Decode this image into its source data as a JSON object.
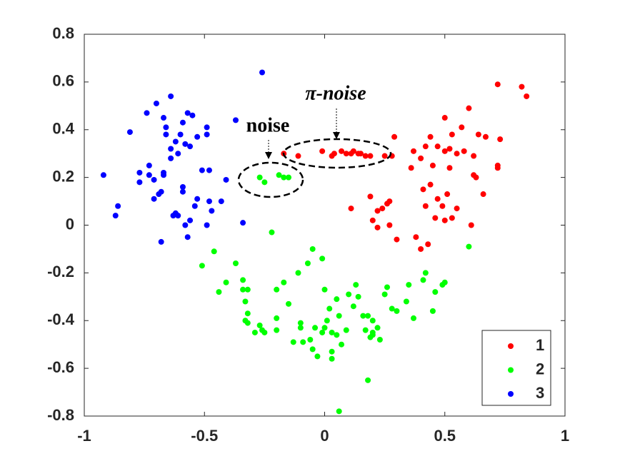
{
  "chart_data": {
    "type": "scatter",
    "xlim": [
      -1,
      1
    ],
    "ylim": [
      -0.8,
      0.8
    ],
    "xticks": [
      -1,
      -0.5,
      0,
      0.5,
      1
    ],
    "yticks": [
      -0.8,
      -0.6,
      -0.4,
      -0.2,
      0,
      0.2,
      0.4,
      0.6,
      0.8
    ],
    "legend": "lower right",
    "annotations": [
      "noise",
      "π-noise"
    ],
    "series": [
      {
        "name": "1",
        "color": "#ff0000",
        "x": [
          0.72,
          0.82,
          0.84,
          0.6,
          0.5,
          0.53,
          0.64,
          0.67,
          0.73,
          0.44,
          0.29,
          0.28,
          0.57,
          0.47,
          0.42,
          0.37,
          0.36,
          0.4,
          0.45,
          0.5,
          0.52,
          0.55,
          0.58,
          0.62,
          0.72,
          0.72,
          0.63,
          0.62,
          0.66,
          0.52,
          0.44,
          0.41,
          0.42,
          0.47,
          0.51,
          0.53,
          0.5,
          0.46,
          0.61,
          0.4,
          0.43,
          0.38,
          0.3,
          0.27,
          0.22,
          0.2,
          0.19,
          0.22,
          0.24,
          0.26,
          0.27,
          0.11,
          0.49,
          0.55,
          -0.17,
          -0.11,
          -0.01,
          0.03,
          0.04,
          0.07,
          0.09,
          0.11,
          0.12,
          0.14,
          0.15,
          0.17,
          0.19,
          0.25
        ],
        "y": [
          0.59,
          0.58,
          0.54,
          0.49,
          0.45,
          0.38,
          0.38,
          0.37,
          0.36,
          0.37,
          0.37,
          0.29,
          0.41,
          0.33,
          0.33,
          0.31,
          0.24,
          0.28,
          0.25,
          0.31,
          0.32,
          0.3,
          0.31,
          0.29,
          0.25,
          0.24,
          0.2,
          0.21,
          0.13,
          0.24,
          0.17,
          0.15,
          0.08,
          0.11,
          0.13,
          0.03,
          0.02,
          0.03,
          0.0,
          -0.1,
          -0.08,
          -0.05,
          -0.06,
          0.0,
          -0.01,
          0.02,
          0.12,
          0.06,
          0.07,
          0.09,
          0.1,
          0.07,
          0.08,
          0.07,
          0.3,
          0.29,
          0.31,
          0.29,
          0.3,
          0.31,
          0.3,
          0.3,
          0.31,
          0.3,
          0.3,
          0.29,
          0.29,
          0.29
        ]
      },
      {
        "name": "2",
        "color": "#00ff00",
        "x": [
          -0.27,
          -0.25,
          -0.19,
          -0.17,
          -0.15,
          -0.22,
          -0.51,
          -0.46,
          -0.44,
          -0.41,
          -0.37,
          -0.34,
          -0.34,
          -0.32,
          -0.33,
          -0.32,
          -0.33,
          -0.32,
          -0.29,
          -0.27,
          -0.26,
          -0.25,
          -0.2,
          -0.2,
          -0.2,
          -0.17,
          -0.15,
          -0.11,
          -0.07,
          -0.05,
          -0.01,
          -0.13,
          -0.1,
          -0.1,
          -0.09,
          -0.06,
          -0.05,
          -0.04,
          -0.03,
          -0.01,
          0.0,
          0.01,
          0.03,
          0.05,
          0.03,
          0.03,
          0.07,
          0.02,
          0.05,
          0.06,
          0.1,
          0.13,
          0.12,
          0.14,
          0.09,
          0.16,
          0.18,
          0.17,
          0.19,
          0.2,
          0.18,
          0.2,
          0.2,
          0.23,
          0.22,
          0.26,
          0.25,
          0.28,
          0.34,
          0.35,
          0.37,
          0.41,
          0.42,
          0.45,
          0.46,
          0.49,
          0.5,
          0.3,
          0.6,
          0.06,
          0.0
        ],
        "y": [
          0.2,
          0.18,
          0.21,
          0.2,
          0.2,
          -0.03,
          -0.17,
          -0.11,
          -0.28,
          -0.24,
          -0.16,
          -0.23,
          -0.27,
          -0.27,
          -0.32,
          -0.37,
          -0.4,
          -0.41,
          -0.45,
          -0.42,
          -0.44,
          -0.45,
          -0.44,
          -0.39,
          -0.27,
          -0.24,
          -0.33,
          -0.2,
          -0.16,
          -0.1,
          -0.14,
          -0.49,
          -0.41,
          -0.43,
          -0.49,
          -0.48,
          -0.52,
          -0.43,
          -0.55,
          -0.45,
          -0.43,
          -0.4,
          -0.45,
          -0.46,
          -0.53,
          -0.56,
          -0.5,
          -0.35,
          -0.31,
          -0.38,
          -0.29,
          -0.25,
          -0.34,
          -0.3,
          -0.44,
          -0.38,
          -0.38,
          -0.44,
          -0.47,
          -0.46,
          -0.65,
          -0.4,
          -0.45,
          -0.48,
          -0.43,
          -0.26,
          -0.29,
          -0.35,
          -0.32,
          -0.25,
          -0.39,
          -0.23,
          -0.2,
          -0.36,
          -0.28,
          -0.25,
          -0.24,
          -0.36,
          -0.09,
          -0.78,
          -0.27
        ]
      },
      {
        "name": "3",
        "color": "#0000ff",
        "x": [
          -0.26,
          -0.64,
          -0.7,
          -0.74,
          -0.81,
          -0.67,
          -0.66,
          -0.6,
          -0.57,
          -0.55,
          -0.59,
          -0.66,
          -0.62,
          -0.58,
          -0.56,
          -0.53,
          -0.49,
          -0.49,
          -0.37,
          -0.61,
          -0.64,
          -0.64,
          -0.73,
          -0.73,
          -0.67,
          -0.71,
          -0.77,
          -0.77,
          -0.67,
          -0.92,
          -0.86,
          -0.87,
          -0.68,
          -0.69,
          -0.71,
          -0.59,
          -0.59,
          -0.51,
          -0.48,
          -0.41,
          -0.53,
          -0.54,
          -0.48,
          -0.43,
          -0.47,
          -0.56,
          -0.49,
          -0.58,
          -0.62,
          -0.63,
          -0.61,
          -0.57,
          -0.68,
          -0.34
        ],
        "y": [
          0.64,
          0.54,
          0.51,
          0.47,
          0.39,
          0.45,
          0.41,
          0.38,
          0.47,
          0.46,
          0.43,
          0.38,
          0.35,
          0.34,
          0.33,
          0.37,
          0.41,
          0.38,
          0.44,
          0.3,
          0.32,
          0.28,
          0.25,
          0.21,
          0.21,
          0.19,
          0.22,
          0.18,
          0.22,
          0.21,
          0.08,
          0.04,
          0.14,
          0.13,
          0.11,
          0.16,
          0.14,
          0.23,
          0.23,
          0.19,
          0.11,
          0.08,
          0.1,
          0.1,
          0.06,
          0.02,
          0.0,
          0.0,
          0.05,
          0.04,
          0.04,
          -0.05,
          -0.07,
          0.01
        ]
      }
    ]
  }
}
